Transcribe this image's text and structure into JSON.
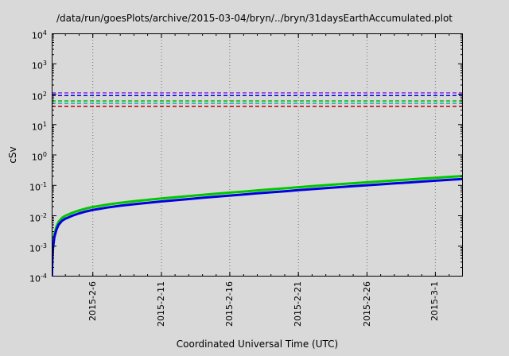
{
  "colors": {
    "background": "#d9d9d9",
    "axis": "#000000",
    "grid": "#737373",
    "text": "#000000"
  },
  "chart_data": {
    "type": "line",
    "title": "/data/run/goesPlots/archive/2015-03-04/bryn/../bryn/31daysEarthAccumulated.plot",
    "xlabel": "Coordinated Universal Time (UTC)",
    "ylabel": "cSv",
    "y_scale": "log",
    "ylim": [
      0.0001,
      10000
    ],
    "y_tick_exponents": [
      -4,
      -3,
      -2,
      -1,
      0,
      1,
      2,
      3,
      4
    ],
    "x_range_days": [
      0,
      30
    ],
    "x_ticks": [
      {
        "label": "2015-2-6",
        "pos": 0.1
      },
      {
        "label": "2015-2-11",
        "pos": 0.267
      },
      {
        "label": "2015-2-16",
        "pos": 0.433
      },
      {
        "label": "2015-2-21",
        "pos": 0.6
      },
      {
        "label": "2015-2-26",
        "pos": 0.767
      },
      {
        "label": "2015-3-1",
        "pos": 0.933
      }
    ],
    "grid": "vertical-dotted",
    "legend": "none",
    "thresholds": [
      {
        "name": "limit-purple",
        "value": 110,
        "color": "#8a2be2",
        "style": "dashed"
      },
      {
        "name": "limit-blue",
        "value": 90,
        "color": "#0000e6",
        "style": "dashed"
      },
      {
        "name": "limit-green",
        "value": 60,
        "color": "#00bb00",
        "style": "dashed"
      },
      {
        "name": "limit-teal",
        "value": 50,
        "color": "#00b0b0",
        "style": "dashed"
      },
      {
        "name": "limit-red",
        "value": 40,
        "color": "#bb0000",
        "style": "dashed"
      }
    ],
    "series": [
      {
        "name": "accumulated-dose-green",
        "color": "#00c800",
        "width": 3,
        "points": [
          [
            0.02,
            0.00013
          ],
          [
            0.05,
            0.0005
          ],
          [
            0.1,
            0.0011
          ],
          [
            0.2,
            0.0025
          ],
          [
            0.35,
            0.0044
          ],
          [
            0.5,
            0.0063
          ],
          [
            0.75,
            0.0085
          ],
          [
            1,
            0.01
          ],
          [
            1.5,
            0.0125
          ],
          [
            2,
            0.015
          ],
          [
            2.5,
            0.0173
          ],
          [
            3,
            0.0194
          ],
          [
            4,
            0.0231
          ],
          [
            5,
            0.0266
          ],
          [
            6,
            0.03
          ],
          [
            7,
            0.0334
          ],
          [
            8,
            0.0369
          ],
          [
            9,
            0.0404
          ],
          [
            10,
            0.0444
          ],
          [
            11,
            0.0488
          ],
          [
            12,
            0.0531
          ],
          [
            13,
            0.0575
          ],
          [
            14,
            0.0625
          ],
          [
            15,
            0.0681
          ],
          [
            16,
            0.0738
          ],
          [
            17,
            0.08
          ],
          [
            18,
            0.0869
          ],
          [
            19,
            0.0938
          ],
          [
            20,
            0.1013
          ],
          [
            21,
            0.1094
          ],
          [
            22,
            0.1175
          ],
          [
            23,
            0.1263
          ],
          [
            24,
            0.135
          ],
          [
            25,
            0.145
          ],
          [
            26,
            0.155
          ],
          [
            27,
            0.1663
          ],
          [
            28,
            0.1775
          ],
          [
            29,
            0.19
          ],
          [
            30,
            0.2025
          ]
        ]
      },
      {
        "name": "accumulated-dose-blue",
        "color": "#0000e0",
        "width": 3,
        "points": [
          [
            0.02,
            0.0001
          ],
          [
            0.05,
            0.0004
          ],
          [
            0.1,
            0.0009
          ],
          [
            0.2,
            0.002
          ],
          [
            0.35,
            0.0035
          ],
          [
            0.5,
            0.005
          ],
          [
            0.75,
            0.0068
          ],
          [
            1,
            0.008
          ],
          [
            1.5,
            0.01
          ],
          [
            2,
            0.012
          ],
          [
            2.5,
            0.0138
          ],
          [
            3,
            0.0155
          ],
          [
            4,
            0.0185
          ],
          [
            5,
            0.0213
          ],
          [
            6,
            0.024
          ],
          [
            7,
            0.0267
          ],
          [
            8,
            0.0295
          ],
          [
            9,
            0.0323
          ],
          [
            10,
            0.0355
          ],
          [
            11,
            0.039
          ],
          [
            12,
            0.0425
          ],
          [
            13,
            0.046
          ],
          [
            14,
            0.05
          ],
          [
            15,
            0.0545
          ],
          [
            16,
            0.059
          ],
          [
            17,
            0.064
          ],
          [
            18,
            0.0695
          ],
          [
            19,
            0.075
          ],
          [
            20,
            0.081
          ],
          [
            21,
            0.0875
          ],
          [
            22,
            0.094
          ],
          [
            23,
            0.101
          ],
          [
            24,
            0.108
          ],
          [
            25,
            0.116
          ],
          [
            26,
            0.124
          ],
          [
            27,
            0.133
          ],
          [
            28,
            0.142
          ],
          [
            29,
            0.152
          ],
          [
            30,
            0.162
          ]
        ]
      }
    ]
  }
}
